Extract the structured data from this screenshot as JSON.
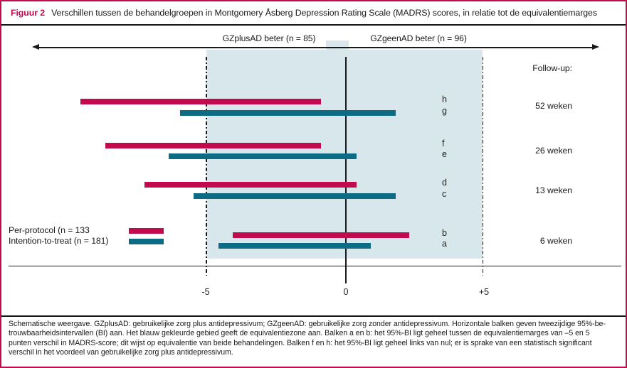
{
  "figure": {
    "title_label": "Figuur 2",
    "title_text": "Verschillen tussen de behandelgroepen in Montgomery Åsberg Depression Rating Scale (MADRS) scores, in relatie tot de equivalentiemarges"
  },
  "colors": {
    "accent": "#c20b4e",
    "teal": "#0b6c84",
    "zone": "#d7e7ec",
    "ink": "#1a1a1a"
  },
  "chart_data": {
    "type": "bar",
    "subtype": "horizontal-95%-confidence-interval-bars",
    "xlabel": "",
    "ylabel": "",
    "axis": {
      "xlim": [
        -11.2,
        10
      ],
      "ticks": [
        -5,
        0,
        5
      ],
      "tick_labels": [
        "-5",
        "0",
        "+5"
      ]
    },
    "equivalence_zone": {
      "from": -5,
      "to": 5
    },
    "direction_labels": [
      {
        "text": "GZplusAD beter (n = 85)"
      },
      {
        "text": "GZgeenAD beter (n = 96)"
      }
    ],
    "followup_header": "Follow-up:",
    "groups": [
      {
        "label": "52 weken",
        "bars": [
          {
            "id": "h",
            "series": "per-protocol",
            "ci": [
              -9.6,
              -0.9
            ]
          },
          {
            "id": "g",
            "series": "intention-to-treat",
            "ci": [
              -6.0,
              1.8
            ]
          }
        ]
      },
      {
        "label": "26 weken",
        "bars": [
          {
            "id": "f",
            "series": "per-protocol",
            "ci": [
              -8.7,
              -0.9
            ]
          },
          {
            "id": "e",
            "series": "intention-to-treat",
            "ci": [
              -6.4,
              0.4
            ]
          }
        ]
      },
      {
        "label": "13 weken",
        "bars": [
          {
            "id": "d",
            "series": "per-protocol",
            "ci": [
              -7.3,
              0.4
            ]
          },
          {
            "id": "c",
            "series": "intention-to-treat",
            "ci": [
              -5.5,
              1.8
            ]
          }
        ]
      },
      {
        "label": "6 weken",
        "bars": [
          {
            "id": "b",
            "series": "per-protocol",
            "ci": [
              -4.1,
              2.3
            ]
          },
          {
            "id": "a",
            "series": "intention-to-treat",
            "ci": [
              -4.6,
              0.9
            ]
          }
        ]
      }
    ],
    "legend": [
      {
        "label": "Per-protocol (n = 133",
        "series": "per-protocol"
      },
      {
        "label": "Intention-to-treat (n = 181)",
        "series": "intention-to-treat"
      }
    ]
  },
  "footnote": {
    "lines": [
      "Schematische weergave. GZplusAD: gebruikelijke zorg plus antidepressivum; GZgeenAD: gebruikelijke zorg zonder antidepressivum. Horizontale balken geven tweezijdige 95%-be-",
      "trouwbaarheidsintervallen (BI) aan. Het blauw gekleurde gebied geeft de equivalentiezone aan. Balken a en b: het 95%-BI ligt geheel tussen de equivalentiemarges van –5 en 5",
      "punten verschil in MADRS-score; dit wijst op equivalentie van beide behandelingen. Balken f en h: het 95%-BI ligt geheel links van nul; er is sprake van een statistisch significant",
      "verschil in het voordeel van gebruikelijke zorg plus antidepressivum."
    ]
  }
}
